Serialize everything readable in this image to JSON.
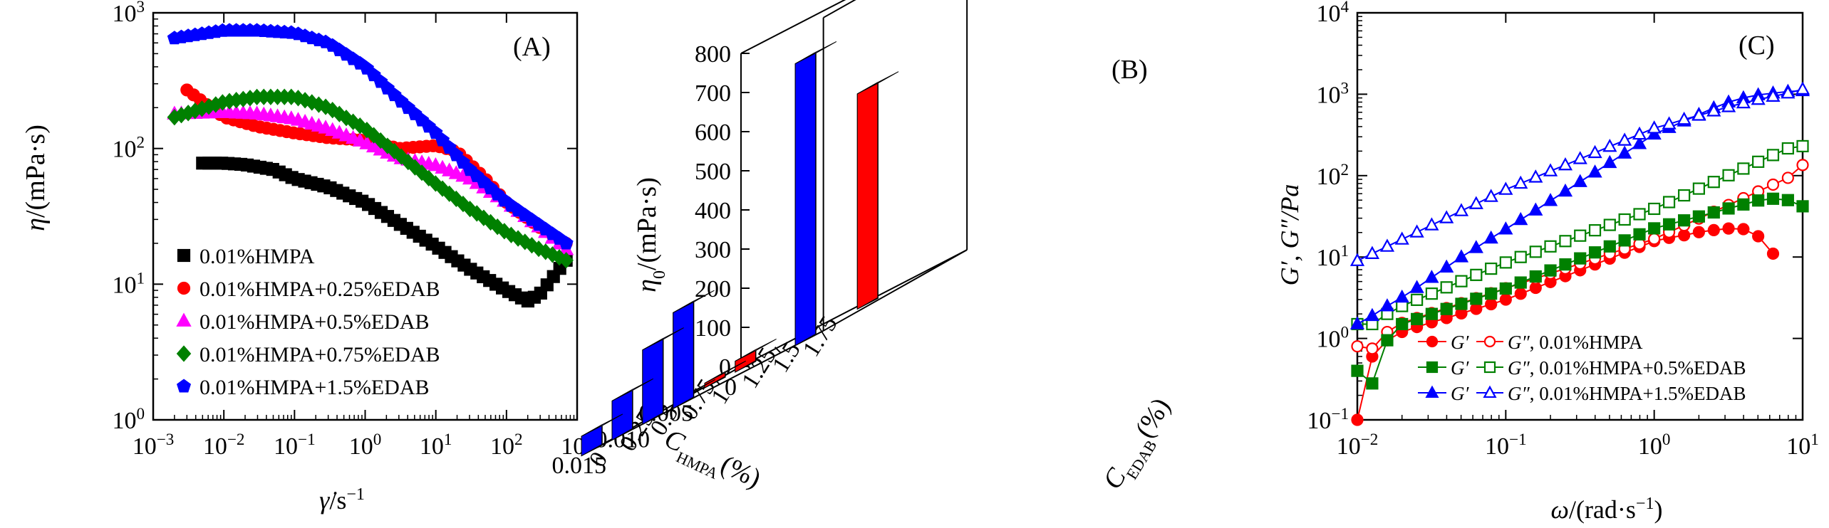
{
  "colors": {
    "black": "#000000",
    "red": "#ff0000",
    "magenta": "#ff00ff",
    "green": "#008000",
    "blue": "#0000ff",
    "bar_red": "#ff0000",
    "bar_red_side": "#b00000",
    "bar_red_top": "#ff8080",
    "bar_blue": "#0000ff",
    "bar_blue_side": "#0000a8",
    "bar_blue_top": "#6a6aff"
  },
  "panel_a": {
    "label": "(A)",
    "ylabel_sym": "η",
    "ylabel_unit": "/(mPa·s)",
    "xlabel_sym": "γ̇",
    "xlabel_unit": "/s",
    "xlabel_exp": "−1",
    "x_ticks": [
      {
        "base": "10",
        "exp": "−3",
        "v": -3
      },
      {
        "base": "10",
        "exp": "−2",
        "v": -2
      },
      {
        "base": "10",
        "exp": "−1",
        "v": -1
      },
      {
        "base": "10",
        "exp": "0",
        "v": 0
      },
      {
        "base": "10",
        "exp": "1",
        "v": 1
      },
      {
        "base": "10",
        "exp": "2",
        "v": 2
      },
      {
        "base": "10",
        "exp": "3",
        "v": 3
      }
    ],
    "y_ticks": [
      {
        "base": "10",
        "exp": "0",
        "v": 0
      },
      {
        "base": "10",
        "exp": "1",
        "v": 1
      },
      {
        "base": "10",
        "exp": "2",
        "v": 2
      },
      {
        "base": "10",
        "exp": "3",
        "v": 3
      }
    ],
    "legend": [
      "0.01%HMPA",
      "0.01%HMPA+0.25%EDAB",
      "0.01%HMPA+0.5%EDAB",
      "0.01%HMPA+0.75%EDAB",
      "0.01%HMPA+1.5%EDAB"
    ]
  },
  "panel_b": {
    "label": "(B)",
    "zlabel_sym": "η",
    "zlabel_sub": "0",
    "zlabel_unit": "/(mPa·s)",
    "z_ticks": [
      "0",
      "100",
      "200",
      "300",
      "400",
      "500",
      "600",
      "700",
      "800"
    ],
    "x_ticks": [
      "0",
      "0.005",
      "0.010",
      "0.015"
    ],
    "y_ticks": [
      "0",
      "0.25",
      "0.5",
      "0.75",
      "1",
      "1.25",
      "1.5",
      "1.75"
    ],
    "xlabel_sym": "C",
    "xlabel_sub": "HMPA",
    "xlabel_unit": "(%)",
    "ylabel_sym": "C",
    "ylabel_sub": "EDAB",
    "ylabel_unit": "(%)"
  },
  "panel_c": {
    "label": "(C)",
    "ylabel": "G′, G″/Pa",
    "xlabel_sym": "ω",
    "xlabel_unit": "/(rad·s",
    "xlabel_exp": "−1",
    "xlabel_close": ")",
    "x_ticks": [
      {
        "base": "10",
        "exp": "−2",
        "v": -2
      },
      {
        "base": "10",
        "exp": "−1",
        "v": -1
      },
      {
        "base": "10",
        "exp": "0",
        "v": 0
      },
      {
        "base": "10",
        "exp": "1",
        "v": 1
      }
    ],
    "y_ticks": [
      {
        "base": "10",
        "exp": "−1",
        "v": -1
      },
      {
        "base": "10",
        "exp": "0",
        "v": 0
      },
      {
        "base": "10",
        "exp": "1",
        "v": 1
      },
      {
        "base": "10",
        "exp": "2",
        "v": 2
      },
      {
        "base": "10",
        "exp": "3",
        "v": 3
      },
      {
        "base": "10",
        "exp": "4",
        "v": 4
      }
    ],
    "legend": [
      {
        "g1": "G′",
        "g2": "G″",
        "text": ", 0.01%HMPA"
      },
      {
        "g1": "G′",
        "g2": "G″",
        "text": ", 0.01%HMPA+0.5%EDAB"
      },
      {
        "g1": "G′",
        "g2": "G″",
        "text": ", 0.01%HMPA+1.5%EDAB"
      }
    ]
  },
  "chart_data": [
    {
      "type": "scatter",
      "panel": "A",
      "xlabel": "γ̇/s−1",
      "ylabel": "η/(mPa·s)",
      "xscale": "log",
      "yscale": "log",
      "xlim": [
        0.001,
        1000
      ],
      "ylim": [
        1,
        1000
      ],
      "legend_position": "bottom-left",
      "series": [
        {
          "name": "0.01%HMPA",
          "marker": "square",
          "color": "#000000",
          "x": [
            0.005,
            0.01,
            0.02,
            0.05,
            0.1,
            0.3,
            1,
            3,
            10,
            30,
            100,
            200,
            300,
            500,
            700
          ],
          "y": [
            78,
            78,
            76,
            70,
            60,
            52,
            40,
            28,
            19,
            13,
            9,
            7.5,
            8.5,
            12,
            15
          ]
        },
        {
          "name": "0.01%HMPA+0.25%EDAB",
          "marker": "circle",
          "color": "#ff0000",
          "x": [
            0.003,
            0.01,
            0.03,
            0.1,
            0.3,
            1,
            3,
            10,
            20,
            50,
            100,
            300,
            700
          ],
          "y": [
            270,
            170,
            145,
            130,
            120,
            115,
            100,
            105,
            95,
            60,
            40,
            26,
            20
          ]
        },
        {
          "name": "0.01%HMPA+0.5%EDAB",
          "marker": "triangle",
          "color": "#ff00ff",
          "x": [
            0.002,
            0.01,
            0.03,
            0.1,
            0.3,
            1,
            3,
            10,
            30,
            100,
            300,
            700
          ],
          "y": [
            180,
            185,
            180,
            165,
            140,
            110,
            85,
            75,
            60,
            40,
            26,
            18
          ]
        },
        {
          "name": "0.01%HMPA+0.75%EDAB",
          "marker": "diamond",
          "color": "#008000",
          "x": [
            0.002,
            0.01,
            0.03,
            0.1,
            0.3,
            1,
            3,
            10,
            30,
            100,
            300,
            700
          ],
          "y": [
            170,
            220,
            240,
            240,
            200,
            140,
            90,
            55,
            36,
            24,
            18,
            15
          ]
        },
        {
          "name": "0.01%HMPA+1.5%EDAB",
          "marker": "pentagon",
          "color": "#0000ff",
          "x": [
            0.002,
            0.005,
            0.01,
            0.03,
            0.1,
            0.3,
            1,
            3,
            10,
            30,
            100,
            300,
            700
          ],
          "y": [
            650,
            700,
            740,
            740,
            710,
            600,
            400,
            230,
            130,
            70,
            40,
            27,
            20
          ]
        }
      ]
    },
    {
      "type": "bar",
      "panel": "B",
      "zlabel": "η0/(mPa·s)",
      "xlabel": "CHMPA(%)",
      "ylabel": "CEDAB(%)",
      "zlim": [
        0,
        800
      ],
      "series": [
        {
          "name": "red",
          "bars": [
            {
              "x": 0.005,
              "y": 0,
              "z": 5
            },
            {
              "x": 0.005,
              "y": 0.25,
              "z": 12
            },
            {
              "x": 0.005,
              "y": 0.5,
              "z": 28
            },
            {
              "x": 0.005,
              "y": 1.5,
              "z": 550
            }
          ]
        },
        {
          "name": "blue",
          "bars": [
            {
              "x": 0.015,
              "y": 0,
              "z": 50
            },
            {
              "x": 0.015,
              "y": 0.25,
              "z": 100
            },
            {
              "x": 0.015,
              "y": 0.5,
              "z": 190
            },
            {
              "x": 0.015,
              "y": 0.75,
              "z": 245
            },
            {
              "x": 0.015,
              "y": 1.75,
              "z": 720
            }
          ]
        }
      ]
    },
    {
      "type": "scatter",
      "panel": "C",
      "xlabel": "ω/(rad·s−1)",
      "ylabel": "G′, G″/Pa",
      "xscale": "log",
      "yscale": "log",
      "xlim": [
        0.01,
        10
      ],
      "ylim": [
        0.1,
        10000
      ],
      "legend_position": "bottom-right",
      "series": [
        {
          "name": "G′, 0.01%HMPA",
          "marker": "circle",
          "filled": true,
          "color": "#ff0000",
          "x": [
            0.01,
            0.0126,
            0.0159,
            0.02,
            0.0252,
            0.0317,
            0.0399,
            0.0502,
            0.0632,
            0.0796,
            0.1,
            0.126,
            0.159,
            0.2,
            0.252,
            0.317,
            0.399,
            0.502,
            0.632,
            0.796,
            1.0,
            1.26,
            1.59,
            2.0,
            2.52,
            3.17,
            3.99,
            5.02,
            6.32
          ],
          "y": [
            0.1,
            0.6,
            0.95,
            1.2,
            1.38,
            1.58,
            1.78,
            2.03,
            2.31,
            2.63,
            3.0,
            3.54,
            4.18,
            4.93,
            5.82,
            6.87,
            8.11,
            9.57,
            11.3,
            13.3,
            15.7,
            17.2,
            18.5,
            20.2,
            21.4,
            22.4,
            22.0,
            18.0,
            11.0
          ]
        },
        {
          "name": "G″, 0.01%HMPA",
          "marker": "circle",
          "filled": false,
          "color": "#ff0000",
          "x": [
            0.01,
            0.0126,
            0.0159,
            0.02,
            0.0252,
            0.0317,
            0.0399,
            0.0502,
            0.0632,
            0.0796,
            0.1,
            0.126,
            0.159,
            0.2,
            0.252,
            0.317,
            0.399,
            0.502,
            0.632,
            0.796,
            1.0,
            1.26,
            1.59,
            2.0,
            2.52,
            3.17,
            3.99,
            5.02,
            6.32,
            7.96,
            10
          ],
          "y": [
            0.8,
            0.75,
            1.2,
            1.55,
            1.78,
            2.05,
            2.36,
            2.71,
            3.12,
            3.59,
            4.13,
            4.75,
            5.46,
            6.28,
            7.22,
            8.3,
            9.55,
            11.0,
            12.6,
            14.5,
            16.7,
            20.2,
            24.5,
            29.7,
            36.0,
            43.6,
            52.8,
            64.0,
            77.5,
            93.9,
            135
          ]
        },
        {
          "name": "G′, 0.01%HMPA+0.5%EDAB",
          "marker": "square",
          "filled": true,
          "color": "#008000",
          "x": [
            0.01,
            0.0126,
            0.0159,
            0.02,
            0.0252,
            0.0317,
            0.0399,
            0.0502,
            0.0632,
            0.0796,
            0.1,
            0.126,
            0.159,
            0.2,
            0.252,
            0.317,
            0.399,
            0.502,
            0.632,
            0.796,
            1.0,
            1.26,
            1.59,
            2.0,
            2.52,
            3.17,
            3.99,
            5.02,
            6.32,
            7.96,
            10
          ],
          "y": [
            0.4,
            0.28,
            0.95,
            1.5,
            1.73,
            2.0,
            2.3,
            2.66,
            3.07,
            3.55,
            4.1,
            4.86,
            5.77,
            6.84,
            8.11,
            9.62,
            11.4,
            13.5,
            16.0,
            19.0,
            22.5,
            25.2,
            28.2,
            31.5,
            35.3,
            39.5,
            44.2,
            49.5,
            52.0,
            50.0,
            42.0
          ]
        },
        {
          "name": "G″, 0.01%HMPA+0.5%EDAB",
          "marker": "square",
          "filled": false,
          "color": "#008000",
          "x": [
            0.01,
            0.0126,
            0.0159,
            0.02,
            0.0252,
            0.0317,
            0.0399,
            0.0502,
            0.0632,
            0.0796,
            0.1,
            0.126,
            0.159,
            0.2,
            0.252,
            0.317,
            0.399,
            0.502,
            0.632,
            0.796,
            1.0,
            1.26,
            1.59,
            2.0,
            2.52,
            3.17,
            3.99,
            5.02,
            6.32,
            7.96,
            10
          ],
          "y": [
            1.5,
            1.5,
            2.0,
            2.5,
            2.98,
            3.55,
            4.24,
            5.05,
            6.03,
            7.19,
            8.57,
            10.0,
            11.6,
            13.5,
            15.7,
            18.3,
            21.3,
            24.8,
            28.9,
            33.6,
            39.1,
            47.3,
            57.2,
            69.2,
            83.6,
            101,
            122,
            148,
            179,
            216,
            230
          ]
        },
        {
          "name": "G′, 0.01%HMPA+1.5%EDAB",
          "marker": "triangle",
          "filled": true,
          "color": "#0000ff",
          "x": [
            0.01,
            0.0126,
            0.0159,
            0.02,
            0.0252,
            0.0317,
            0.0399,
            0.0502,
            0.0632,
            0.0796,
            0.1,
            0.126,
            0.159,
            0.2,
            0.252,
            0.317,
            0.399,
            0.502,
            0.632,
            0.796,
            1.0,
            1.26,
            1.59,
            2.0,
            2.52,
            3.17,
            3.99,
            5.02,
            6.32,
            7.96,
            10
          ],
          "y": [
            1.5,
            1.9,
            2.5,
            3.2,
            4.2,
            5.6,
            7.5,
            10.0,
            13.0,
            17.0,
            22.0,
            28.7,
            37.6,
            49.2,
            64.3,
            84.1,
            110,
            144,
            188,
            246,
            322,
            388,
            467,
            563,
            678,
            800,
            900,
            980,
            1030,
            1080,
            1100
          ]
        },
        {
          "name": "G″, 0.01%HMPA+1.5%EDAB",
          "marker": "triangle",
          "filled": false,
          "color": "#0000ff",
          "x": [
            0.01,
            0.0126,
            0.0159,
            0.02,
            0.0252,
            0.0317,
            0.0399,
            0.0502,
            0.0632,
            0.0796,
            0.1,
            0.126,
            0.159,
            0.2,
            0.252,
            0.317,
            0.399,
            0.502,
            0.632,
            0.796,
            1.0,
            1.26,
            1.59,
            2.0,
            2.52,
            3.17,
            3.99,
            5.02,
            6.32,
            7.96,
            10
          ],
          "y": [
            9,
            11,
            13.5,
            16.5,
            20.2,
            24.7,
            30.2,
            36.9,
            45.1,
            55.2,
            67.5,
            80.3,
            95.5,
            114,
            135,
            161,
            191,
            228,
            271,
            322,
            383,
            430,
            490,
            550,
            620,
            700,
            780,
            860,
            940,
            1030,
            1150
          ]
        }
      ]
    }
  ]
}
